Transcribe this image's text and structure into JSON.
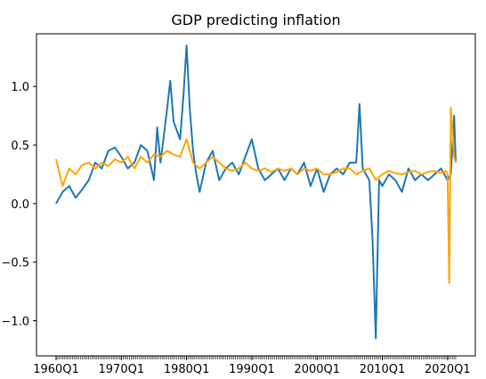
{
  "chart_data": {
    "type": "line",
    "title": "GDP predicting inflation",
    "xlabel": "",
    "ylabel": "",
    "x_tick_labels": [
      "1960Q1",
      "1970Q1",
      "1980Q1",
      "1990Q1",
      "2000Q1",
      "2010Q1",
      "2020Q1"
    ],
    "y_ticks": [
      -1.0,
      -0.5,
      0.0,
      0.5,
      1.0
    ],
    "y_tick_labels": [
      "−1.0",
      "−0.5",
      "0.0",
      "0.5",
      "1.0"
    ],
    "ylim": [
      -1.3,
      1.45
    ],
    "x_range": [
      "1960Q1",
      "2021Q2"
    ],
    "grid": false,
    "series": [
      {
        "color": "#1f77b4",
        "x": [
          "1960Q1",
          "1961Q1",
          "1962Q1",
          "1963Q1",
          "1964Q1",
          "1965Q1",
          "1966Q1",
          "1967Q1",
          "1968Q1",
          "1969Q1",
          "1970Q1",
          "1971Q1",
          "1972Q1",
          "1973Q1",
          "1974Q1",
          "1975Q1",
          "1975Q3",
          "1976Q1",
          "1977Q1",
          "1977Q3",
          "1978Q1",
          "1979Q1",
          "1979Q3",
          "1980Q1",
          "1980Q3",
          "1981Q1",
          "1981Q3",
          "1982Q1",
          "1983Q1",
          "1984Q1",
          "1985Q1",
          "1986Q1",
          "1987Q1",
          "1988Q1",
          "1989Q1",
          "1990Q1",
          "1991Q1",
          "1992Q1",
          "1993Q1",
          "1994Q1",
          "1995Q1",
          "1996Q1",
          "1997Q1",
          "1998Q1",
          "1999Q1",
          "2000Q1",
          "2001Q1",
          "2002Q1",
          "2003Q1",
          "2004Q1",
          "2005Q1",
          "2006Q1",
          "2006Q3",
          "2007Q1",
          "2008Q1",
          "2008Q3",
          "2009Q1",
          "2009Q3",
          "2010Q1",
          "2011Q1",
          "2012Q1",
          "2013Q1",
          "2014Q1",
          "2015Q1",
          "2016Q1",
          "2017Q1",
          "2018Q1",
          "2019Q1",
          "2020Q1",
          "2020Q3",
          "2021Q1",
          "2021Q2"
        ],
        "values": [
          0.0,
          0.1,
          0.15,
          0.05,
          0.12,
          0.2,
          0.35,
          0.3,
          0.45,
          0.48,
          0.4,
          0.3,
          0.35,
          0.5,
          0.45,
          0.2,
          0.65,
          0.35,
          0.8,
          1.05,
          0.7,
          0.55,
          0.9,
          1.35,
          0.8,
          0.45,
          0.25,
          0.1,
          0.35,
          0.45,
          0.2,
          0.3,
          0.35,
          0.25,
          0.4,
          0.55,
          0.3,
          0.2,
          0.25,
          0.3,
          0.2,
          0.3,
          0.25,
          0.35,
          0.15,
          0.3,
          0.1,
          0.25,
          0.3,
          0.25,
          0.35,
          0.35,
          0.85,
          0.3,
          0.2,
          -0.3,
          -1.15,
          0.2,
          0.15,
          0.25,
          0.2,
          0.1,
          0.3,
          0.2,
          0.25,
          0.2,
          0.25,
          0.3,
          0.2,
          0.25,
          0.75,
          0.35
        ]
      },
      {
        "color": "#ffa500",
        "x": [
          "1960Q1",
          "1961Q1",
          "1962Q1",
          "1963Q1",
          "1964Q1",
          "1965Q1",
          "1966Q1",
          "1967Q1",
          "1968Q1",
          "1969Q1",
          "1970Q1",
          "1971Q1",
          "1972Q1",
          "1973Q1",
          "1974Q1",
          "1975Q1",
          "1976Q1",
          "1977Q1",
          "1978Q1",
          "1979Q1",
          "1980Q1",
          "1981Q1",
          "1982Q1",
          "1983Q1",
          "1984Q1",
          "1985Q1",
          "1986Q1",
          "1987Q1",
          "1988Q1",
          "1989Q1",
          "1990Q1",
          "1991Q1",
          "1992Q1",
          "1993Q1",
          "1994Q1",
          "1995Q1",
          "1996Q1",
          "1997Q1",
          "1998Q1",
          "1999Q1",
          "2000Q1",
          "2001Q1",
          "2002Q1",
          "2003Q1",
          "2004Q1",
          "2005Q1",
          "2006Q1",
          "2007Q1",
          "2008Q1",
          "2009Q1",
          "2010Q1",
          "2011Q1",
          "2012Q1",
          "2013Q1",
          "2014Q1",
          "2015Q1",
          "2016Q1",
          "2017Q1",
          "2018Q1",
          "2019Q1",
          "2019Q4",
          "2020Q1",
          "2020Q2",
          "2020Q3",
          "2021Q1",
          "2021Q2"
        ],
        "values": [
          0.38,
          0.15,
          0.3,
          0.25,
          0.33,
          0.35,
          0.3,
          0.35,
          0.32,
          0.38,
          0.35,
          0.4,
          0.3,
          0.4,
          0.35,
          0.42,
          0.4,
          0.45,
          0.42,
          0.4,
          0.55,
          0.35,
          0.3,
          0.35,
          0.4,
          0.35,
          0.3,
          0.28,
          0.3,
          0.35,
          0.3,
          0.28,
          0.3,
          0.27,
          0.3,
          0.28,
          0.3,
          0.25,
          0.3,
          0.28,
          0.3,
          0.25,
          0.25,
          0.27,
          0.3,
          0.3,
          0.25,
          0.28,
          0.3,
          0.2,
          0.25,
          0.28,
          0.26,
          0.25,
          0.27,
          0.28,
          0.25,
          0.27,
          0.28,
          0.26,
          0.28,
          0.25,
          -0.68,
          0.82,
          0.4,
          0.35
        ]
      }
    ]
  }
}
